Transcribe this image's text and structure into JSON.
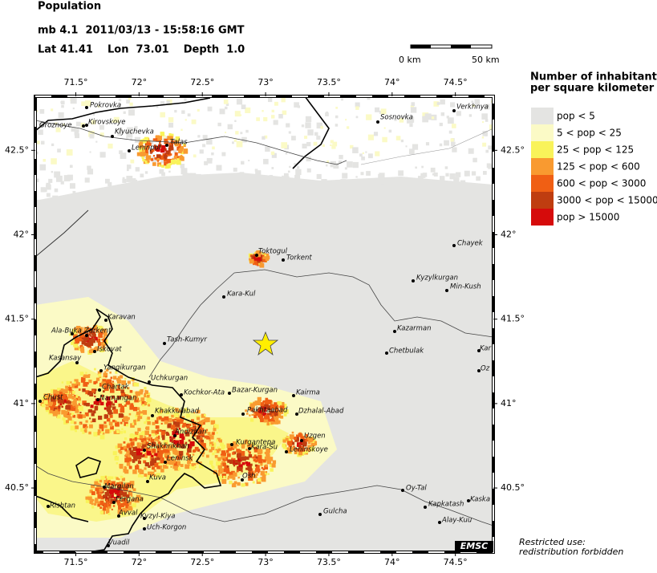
{
  "header": {
    "title": "Population",
    "event": "mb 4.1  2011/03/13 - 15:58:16 GMT",
    "location": "Lat 41.41    Lon  73.01    Depth  1.0"
  },
  "scale": {
    "start": "0 km",
    "end": "50 km"
  },
  "legend": {
    "title_lines": [
      "Number of inhabitants",
      "per square kilometer"
    ],
    "items": [
      {
        "label": "pop < 5",
        "color": "#e4e4e2"
      },
      {
        "label": "5 < pop < 25",
        "color": "#fbfac6"
      },
      {
        "label": "25 < pop < 125",
        "color": "#f9f35a"
      },
      {
        "label": "125 < pop < 600",
        "color": "#f99a30"
      },
      {
        "label": "600 < pop < 3000",
        "color": "#f05f14"
      },
      {
        "label": "3000 < pop < 15000",
        "color": "#bf3d10"
      },
      {
        "label": "pop > 15000",
        "color": "#d60b0b"
      }
    ]
  },
  "map": {
    "xlim": [
      71.18,
      74.8
    ],
    "ylim": [
      40.12,
      42.82
    ],
    "xticks": [
      {
        "value": 71.5,
        "label": "71.5°"
      },
      {
        "value": 72,
        "label": "72°"
      },
      {
        "value": 72.5,
        "label": "72.5°"
      },
      {
        "value": 73,
        "label": "73°"
      },
      {
        "value": 73.5,
        "label": "73.5°"
      },
      {
        "value": 74,
        "label": "74°"
      },
      {
        "value": 74.5,
        "label": "74.5°"
      }
    ],
    "yticks": [
      {
        "value": 42.5,
        "label": "42.5°"
      },
      {
        "value": 42,
        "label": "42°"
      },
      {
        "value": 41.5,
        "label": "41.5°"
      },
      {
        "value": 41,
        "label": "41°"
      },
      {
        "value": 40.5,
        "label": "40.5°"
      }
    ],
    "cities": [
      "Pokrovka",
      "Kirovskoye",
      "Groznoye",
      "Klyuchevka",
      "Leninpol",
      "Talas",
      "Sosnovka",
      "Verkhnya",
      "Toktogul",
      "Torkent",
      "Kara-Kul",
      "Kyzylkurgan",
      "Min-Kush",
      "Chayek",
      "Kazarman",
      "Chetbulak",
      "Karavan",
      "Ala-Buka",
      "Zarkent",
      "Iskovat",
      "Tash-Kumyr",
      "Kasansay",
      "Yangikurgan",
      "Uchkurgan",
      "Chartak",
      "Namangan",
      "Kochkor-Ata",
      "Bazar-Kurgan",
      "Kairma",
      "Chust",
      "Khakkulabad",
      "Pakhtaabad",
      "Dzhalal-Abad",
      "Andizhan",
      "Uzgen",
      "Kurgantepa",
      "Kara-Su",
      "Leninskoye",
      "Shakhrikhan",
      "Leninsk",
      "Kuva",
      "Osh",
      "Margilan",
      "Fergana",
      "Rishtan",
      "Avval",
      "Kyzyl-Kiya",
      "Uch-Korgon",
      "Vuadil",
      "Gulcha",
      "Oy-Tal",
      "Kapkatash",
      "Kaska",
      "Alay-Kuu",
      "Kar",
      "Oz"
    ],
    "agency": "EMSC"
  },
  "footer": {
    "lines": [
      "Restricted use:",
      "redistribution forbidden"
    ]
  }
}
